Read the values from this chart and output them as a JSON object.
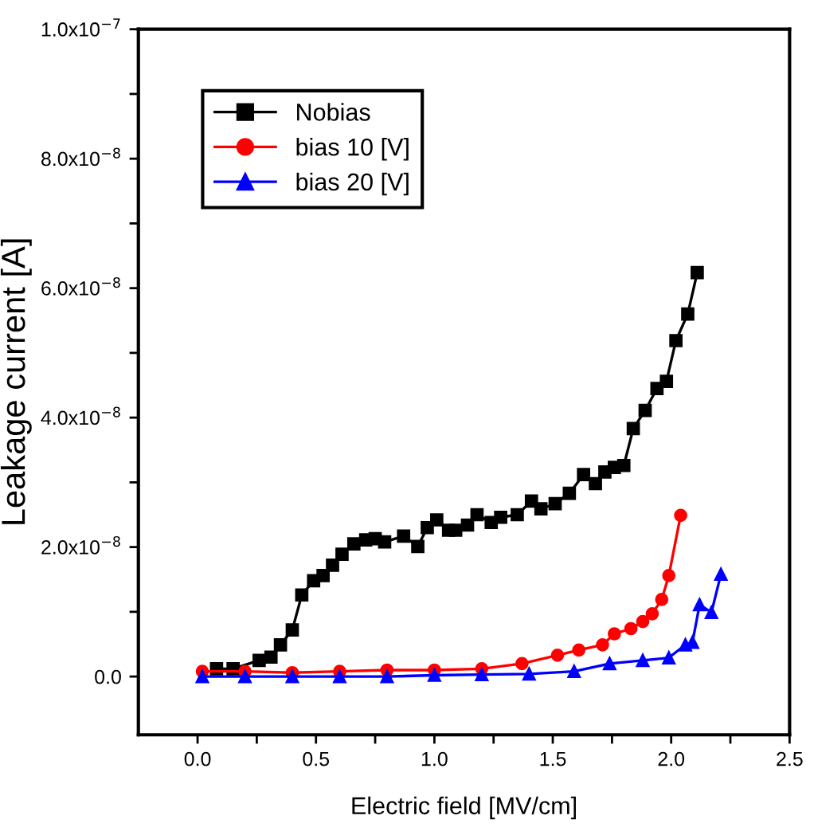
{
  "chart_data": {
    "type": "line",
    "xlabel": "Electric field [MV/cm]",
    "ylabel": "Leakage current [A]",
    "xlim": [
      -0.25,
      2.5
    ],
    "ylim": [
      -9e-09,
      1e-07
    ],
    "xticks": [
      {
        "value": 0.0,
        "label": "0.0"
      },
      {
        "value": 0.25,
        "label": null
      },
      {
        "value": 0.5,
        "label": "0.5"
      },
      {
        "value": 0.75,
        "label": null
      },
      {
        "value": 1.0,
        "label": "1.0"
      },
      {
        "value": 1.25,
        "label": null
      },
      {
        "value": 1.5,
        "label": "1.5"
      },
      {
        "value": 1.75,
        "label": null
      },
      {
        "value": 2.0,
        "label": "2.0"
      },
      {
        "value": 2.25,
        "label": null
      },
      {
        "value": 2.5,
        "label": "2.5"
      }
    ],
    "yticks": [
      {
        "value": 0,
        "label": "0.0"
      },
      {
        "value": 1e-08,
        "label": null
      },
      {
        "value": 2e-08,
        "label": "2.0x10$^{−8}$"
      },
      {
        "value": 3e-08,
        "label": null
      },
      {
        "value": 4e-08,
        "label": "4.0x10$^{−8}$"
      },
      {
        "value": 5e-08,
        "label": null
      },
      {
        "value": 6e-08,
        "label": "6.0x10$^{−8}$"
      },
      {
        "value": 7e-08,
        "label": null
      },
      {
        "value": 8e-08,
        "label": "8.0x10$^{−8}$"
      },
      {
        "value": 9e-08,
        "label": null
      },
      {
        "value": 1e-07,
        "label": "1.0x10$^{−7}$"
      }
    ],
    "legend": "top left",
    "grid": false,
    "series": [
      {
        "name": "Nobias",
        "color": "#000000",
        "marker": "square",
        "x": [
          0.08,
          0.15,
          0.26,
          0.31,
          0.35,
          0.4,
          0.44,
          0.49,
          0.53,
          0.57,
          0.61,
          0.66,
          0.71,
          0.75,
          0.79,
          0.87,
          0.93,
          0.97,
          1.01,
          1.06,
          1.09,
          1.14,
          1.18,
          1.24,
          1.28,
          1.35,
          1.41,
          1.45,
          1.51,
          1.57,
          1.63,
          1.68,
          1.72,
          1.76,
          1.8,
          1.84,
          1.89,
          1.94,
          1.98,
          2.02,
          2.07,
          2.11
        ],
        "values": [
          1.2e-09,
          1.2e-09,
          2.5e-09,
          3e-09,
          4.9e-09,
          7.2e-09,
          1.26e-08,
          1.48e-08,
          1.56e-08,
          1.72e-08,
          1.89e-08,
          2.05e-08,
          2.11e-08,
          2.13e-08,
          2.08e-08,
          2.17e-08,
          2.01e-08,
          2.3e-08,
          2.42e-08,
          2.26e-08,
          2.26e-08,
          2.34e-08,
          2.5e-08,
          2.38e-08,
          2.46e-08,
          2.5e-08,
          2.71e-08,
          2.59e-08,
          2.67e-08,
          2.83e-08,
          3.12e-08,
          2.98e-08,
          3.16e-08,
          3.23e-08,
          3.26e-08,
          3.83e-08,
          4.11e-08,
          4.45e-08,
          4.56e-08,
          5.19e-08,
          5.6e-08,
          6.24e-08
        ]
      },
      {
        "name": "bias 10 [V]",
        "color": "#ff0000",
        "marker": "circle",
        "x": [
          0.02,
          0.2,
          0.4,
          0.6,
          0.8,
          1.0,
          1.2,
          1.37,
          1.52,
          1.61,
          1.71,
          1.76,
          1.83,
          1.88,
          1.92,
          1.96,
          1.99,
          2.04
        ],
        "values": [
          8e-10,
          8e-10,
          6e-10,
          8e-10,
          1e-09,
          1e-09,
          1.2e-09,
          2e-09,
          3.3e-09,
          4.1e-09,
          4.9e-09,
          6.6e-09,
          7.4e-09,
          8.5e-09,
          9.7e-09,
          1.19e-08,
          1.56e-08,
          2.49e-08
        ]
      },
      {
        "name": "bias 20 [V]",
        "color": "#0000ff",
        "marker": "triangle",
        "x": [
          0.02,
          0.2,
          0.4,
          0.6,
          0.8,
          1.0,
          1.2,
          1.4,
          1.59,
          1.74,
          1.88,
          1.99,
          2.06,
          2.09,
          2.12,
          2.17,
          2.21
        ],
        "values": [
          0.0,
          0.0,
          0.0,
          0.0,
          0.0,
          2e-10,
          3e-10,
          4e-10,
          8e-10,
          2e-09,
          2.5e-09,
          2.9e-09,
          4.9e-09,
          5.3e-09,
          1.11e-08,
          9.9e-09,
          1.58e-08
        ]
      }
    ]
  }
}
